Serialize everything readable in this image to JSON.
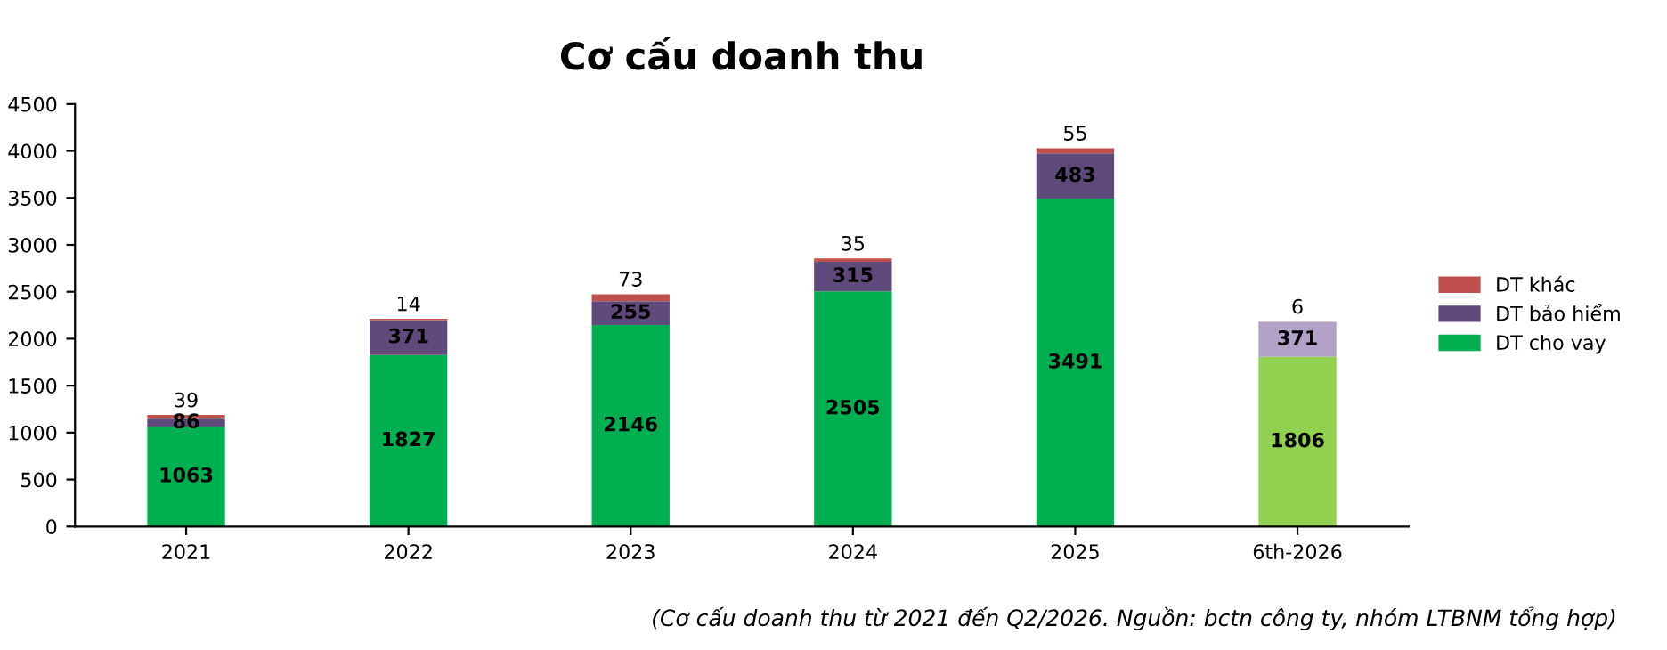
{
  "chart_data": {
    "type": "bar",
    "title": "Cơ cấu doanh thu",
    "stacked": true,
    "categories": [
      "2021",
      "2022",
      "2023",
      "2024",
      "2025",
      "6th-2026"
    ],
    "series": [
      {
        "name": "DT cho vay",
        "color": "#00b050",
        "colors": [
          "#00b050",
          "#00b050",
          "#00b050",
          "#00b050",
          "#00b050",
          "#92d050"
        ],
        "values": [
          1063,
          1827,
          2146,
          2505,
          3491,
          1806
        ]
      },
      {
        "name": "DT bảo hiểm",
        "color": "#604a7b",
        "colors": [
          "#604a7b",
          "#604a7b",
          "#604a7b",
          "#604a7b",
          "#604a7b",
          "#b3a2c7"
        ],
        "values": [
          86,
          371,
          255,
          315,
          483,
          371
        ]
      },
      {
        "name": "DT khác",
        "color": "#c0504d",
        "colors": [
          "#c0504d",
          "#c0504d",
          "#c0504d",
          "#c0504d",
          "#c0504d",
          "#e6b9b8"
        ],
        "values": [
          39,
          14,
          73,
          35,
          55,
          6
        ]
      }
    ],
    "ylim": [
      0,
      4500
    ],
    "yticks": [
      0,
      500,
      1000,
      1500,
      2000,
      2500,
      3000,
      3500,
      4000,
      4500
    ],
    "grid": false,
    "legend": "right",
    "data_labels": true,
    "annotations": [
      "(Cơ cấu doanh thu từ 2021 đến Q2/2026. Nguồn: bctn công ty, nhóm LTBNM tổng hợp)"
    ]
  }
}
